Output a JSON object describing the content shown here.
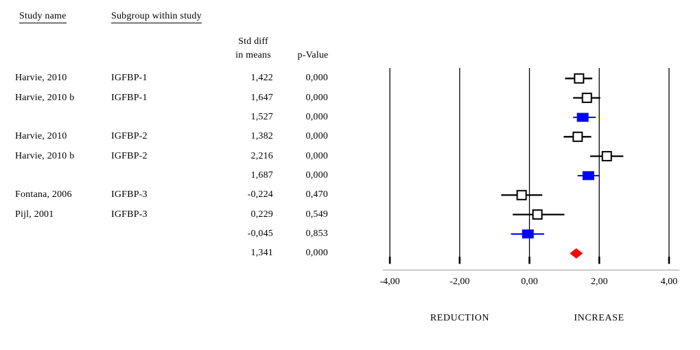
{
  "header": {
    "study_col": "Study name",
    "subgroup_col": "Subgroup within study",
    "effect_col_line1": "Std diff",
    "effect_col_line2": "in means",
    "p_col": "p-Value"
  },
  "axis": {
    "tick_labels": [
      "-4,00",
      "-2,00",
      "0,00",
      "2,00",
      "4,00"
    ],
    "tick_values": [
      -4,
      -2,
      0,
      2,
      4
    ],
    "left_label": "REDUCTION",
    "right_label": "INCREASE"
  },
  "colors": {
    "study_marker_fill": "#ffffff",
    "study_marker_border": "#000000",
    "summary_marker": "#0000ff",
    "overall_marker": "#ff0000",
    "gridline": "#000000",
    "axis_line": "#aaaaaa",
    "text": "#000000"
  },
  "chart_data": {
    "type": "forest",
    "x_axis_label_left": "REDUCTION",
    "x_axis_label_right": "INCREASE",
    "xlim": [
      -4,
      4
    ],
    "effect_measure": "Std diff in means",
    "rows": [
      {
        "study": "Harvie, 2010",
        "subgroup": "IGFBP-1",
        "std_diff_label": "1,422",
        "p_label": "0,000",
        "estimate": 1.422,
        "ci_low": 1.02,
        "ci_high": 1.8,
        "kind": "study"
      },
      {
        "study": "Harvie, 2010 b",
        "subgroup": "IGFBP-1",
        "std_diff_label": "1,647",
        "p_label": "0,000",
        "estimate": 1.647,
        "ci_low": 1.25,
        "ci_high": 2.03,
        "kind": "study"
      },
      {
        "study": "",
        "subgroup": "",
        "std_diff_label": "1,527",
        "p_label": "0,000",
        "estimate": 1.527,
        "ci_low": 1.25,
        "ci_high": 1.9,
        "kind": "summary"
      },
      {
        "study": "Harvie, 2010",
        "subgroup": "IGFBP-2",
        "std_diff_label": "1,382",
        "p_label": "0,000",
        "estimate": 1.382,
        "ci_low": 0.98,
        "ci_high": 1.77,
        "kind": "study"
      },
      {
        "study": "Harvie, 2010 b",
        "subgroup": "IGFBP-2",
        "std_diff_label": "2,216",
        "p_label": "0,000",
        "estimate": 2.216,
        "ci_low": 1.74,
        "ci_high": 2.69,
        "kind": "study"
      },
      {
        "study": "",
        "subgroup": "",
        "std_diff_label": "1,687",
        "p_label": "0,000",
        "estimate": 1.687,
        "ci_low": 1.38,
        "ci_high": 2.0,
        "kind": "summary"
      },
      {
        "study": "Fontana, 2006",
        "subgroup": "IGFBP-3",
        "std_diff_label": "-0,224",
        "p_label": "0,470",
        "estimate": -0.224,
        "ci_low": -0.81,
        "ci_high": 0.37,
        "kind": "study"
      },
      {
        "study": "Pijl, 2001",
        "subgroup": "IGFBP-3",
        "std_diff_label": "0,229",
        "p_label": "0,549",
        "estimate": 0.229,
        "ci_low": -0.48,
        "ci_high": 1.0,
        "kind": "study"
      },
      {
        "study": "",
        "subgroup": "",
        "std_diff_label": "-0,045",
        "p_label": "0,853",
        "estimate": -0.045,
        "ci_low": -0.53,
        "ci_high": 0.42,
        "kind": "summary"
      },
      {
        "study": "",
        "subgroup": "",
        "std_diff_label": "1,341",
        "p_label": "0,000",
        "estimate": 1.341,
        "ci_low": 1.16,
        "ci_high": 1.52,
        "kind": "overall"
      }
    ]
  }
}
